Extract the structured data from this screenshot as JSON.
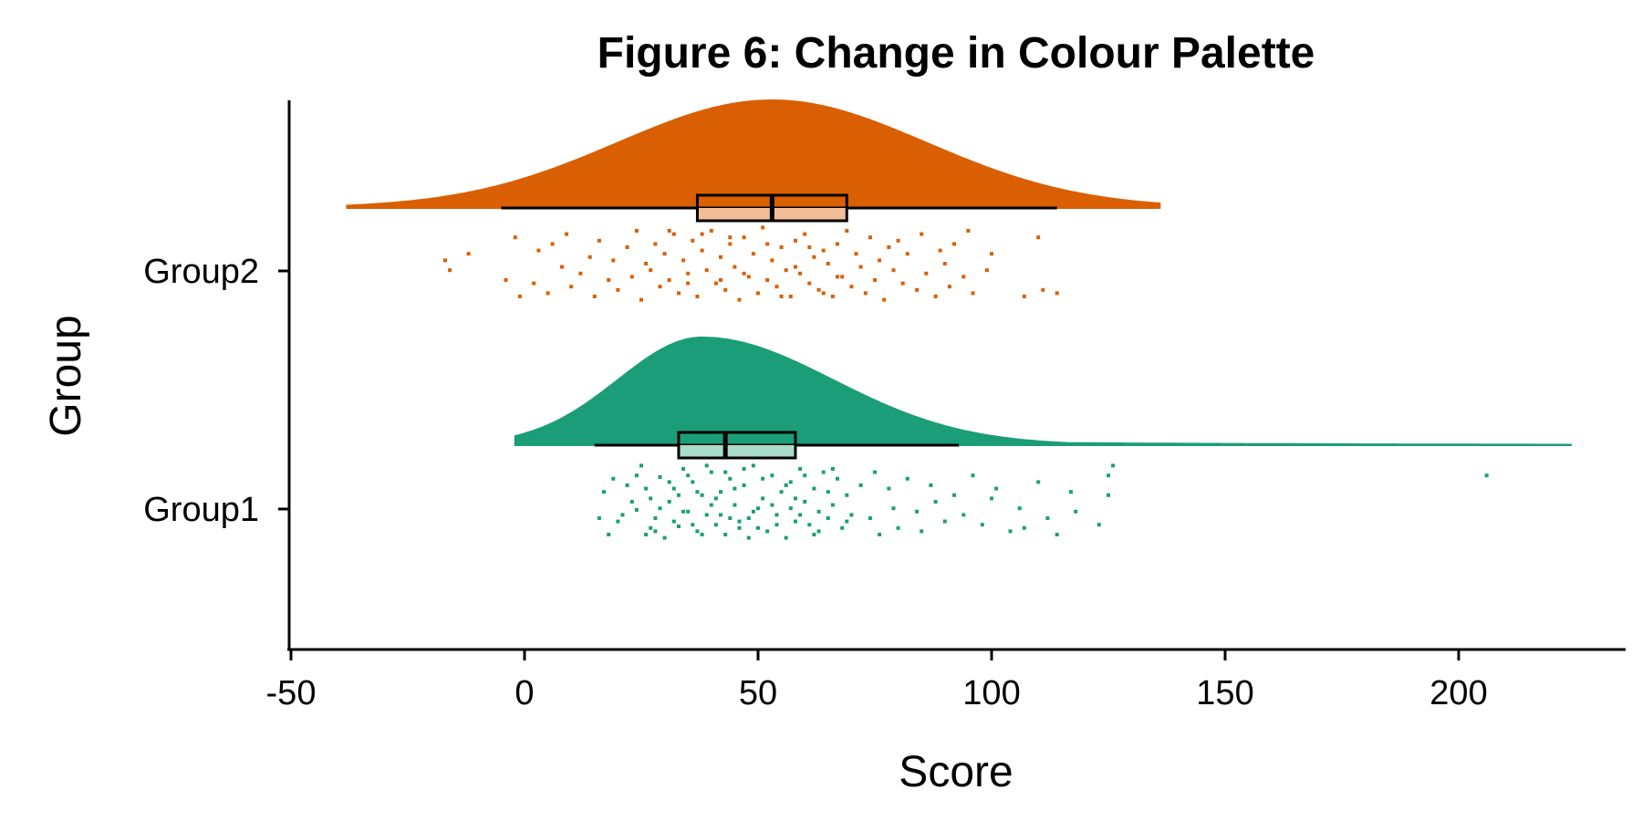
{
  "chart_data": {
    "type": "raincloud",
    "title": "Figure 6: Change in Colour Palette",
    "xlabel": "Score",
    "ylabel": "Group",
    "xlim": [
      -50,
      235
    ],
    "x_ticks": [
      -50,
      0,
      50,
      100,
      150,
      200
    ],
    "x_tick_labels": [
      "-50",
      "0",
      "50",
      "100",
      "150",
      "200"
    ],
    "categories": [
      "Group1",
      "Group2"
    ],
    "grid": false,
    "legend": "none",
    "series": [
      {
        "name": "Group1",
        "color": "#1B9E77",
        "box_fill": "#A9DCCB",
        "density_range": [
          -2,
          224
        ],
        "density_mode": 38,
        "box": {
          "whisker_low": 15,
          "q1": 33,
          "median": 43,
          "q3": 58,
          "whisker_high": 93
        },
        "points": [
          [
            20,
            0.12
          ],
          [
            22,
            -0.1
          ],
          [
            24,
            0.05
          ],
          [
            25,
            -0.22
          ],
          [
            26,
            0.2
          ],
          [
            27,
            -0.02
          ],
          [
            28,
            0.1
          ],
          [
            29,
            -0.15
          ],
          [
            30,
            0.22
          ],
          [
            31,
            0.0
          ],
          [
            32,
            -0.08
          ],
          [
            33,
            0.15
          ],
          [
            34,
            -0.2
          ],
          [
            35,
            0.06
          ],
          [
            36,
            -0.12
          ],
          [
            37,
            0.18
          ],
          [
            38,
            -0.04
          ],
          [
            39,
            0.08
          ],
          [
            40,
            -0.18
          ],
          [
            41,
            0.14
          ],
          [
            42,
            -0.06
          ],
          [
            43,
            0.2
          ],
          [
            44,
            -0.14
          ],
          [
            45,
            0.02
          ],
          [
            46,
            0.16
          ],
          [
            47,
            -0.1
          ],
          [
            48,
            0.1
          ],
          [
            49,
            -0.22
          ],
          [
            50,
            0.04
          ],
          [
            51,
            -0.02
          ],
          [
            52,
            0.18
          ],
          [
            53,
            -0.16
          ],
          [
            54,
            0.08
          ],
          [
            55,
            -0.06
          ],
          [
            56,
            0.22
          ],
          [
            57,
            -0.12
          ],
          [
            58,
            0.12
          ],
          [
            59,
            -0.2
          ],
          [
            60,
            0.0
          ],
          [
            61,
            0.14
          ],
          [
            62,
            -0.08
          ],
          [
            63,
            0.06
          ],
          [
            64,
            -0.18
          ],
          [
            65,
            0.1
          ],
          [
            66,
            0.02
          ],
          [
            67,
            -0.14
          ],
          [
            68,
            0.16
          ],
          [
            69,
            -0.04
          ],
          [
            70,
            0.08
          ],
          [
            72,
            -0.1
          ],
          [
            23,
            0.0
          ],
          [
            26,
            -0.08
          ],
          [
            29,
            0.04
          ],
          [
            32,
            0.12
          ],
          [
            35,
            -0.16
          ],
          [
            38,
            0.2
          ],
          [
            41,
            -0.02
          ],
          [
            44,
            0.1
          ],
          [
            47,
            -0.2
          ],
          [
            50,
            0.16
          ],
          [
            53,
            0.02
          ],
          [
            56,
            -0.1
          ],
          [
            59,
            0.08
          ],
          [
            62,
            0.2
          ],
          [
            65,
            -0.06
          ],
          [
            34,
            0.06
          ],
          [
            37,
            -0.06
          ],
          [
            40,
            0.02
          ],
          [
            43,
            -0.18
          ],
          [
            46,
            0.12
          ],
          [
            24,
            -0.16
          ],
          [
            28,
            0.18
          ],
          [
            31,
            -0.12
          ],
          [
            36,
            0.14
          ],
          [
            39,
            -0.22
          ],
          [
            42,
            0.08
          ],
          [
            45,
            -0.08
          ],
          [
            48,
            0.22
          ],
          [
            51,
            -0.14
          ],
          [
            54,
            0.14
          ],
          [
            57,
            0.04
          ],
          [
            60,
            -0.16
          ],
          [
            63,
            0.18
          ],
          [
            66,
            -0.2
          ],
          [
            69,
            0.12
          ],
          [
            21,
            0.08
          ],
          [
            27,
            0.16
          ],
          [
            33,
            -0.04
          ],
          [
            49,
            0.06
          ],
          [
            58,
            -0.02
          ],
          [
            74,
            0.1
          ],
          [
            75,
            -0.18
          ],
          [
            76,
            0.2
          ],
          [
            78,
            -0.08
          ],
          [
            79,
            0.04
          ],
          [
            80,
            0.16
          ],
          [
            82,
            -0.14
          ],
          [
            84,
            0.06
          ],
          [
            85,
            0.18
          ],
          [
            87,
            -0.1
          ],
          [
            88,
            0.0
          ],
          [
            90,
            0.12
          ],
          [
            92,
            -0.04
          ],
          [
            94,
            0.08
          ],
          [
            96,
            -0.16
          ],
          [
            98,
            0.14
          ],
          [
            101,
            -0.08
          ],
          [
            104,
            0.18
          ],
          [
            106,
            0.04
          ],
          [
            110,
            -0.12
          ],
          [
            112,
            0.1
          ],
          [
            114,
            0.2
          ],
          [
            117,
            -0.06
          ],
          [
            118,
            0.06
          ],
          [
            123,
            0.14
          ],
          [
            125,
            -0.04
          ],
          [
            125,
            -0.16
          ],
          [
            126,
            -0.22
          ],
          [
            107,
            0.16
          ],
          [
            100,
            -0.02
          ],
          [
            206,
            -0.16
          ],
          [
            16,
            0.1
          ],
          [
            17,
            -0.06
          ],
          [
            18,
            0.2
          ],
          [
            19,
            -0.14
          ]
        ]
      },
      {
        "name": "Group2",
        "color": "#D95F02",
        "box_fill": "#F3BE99",
        "density_range": [
          -38,
          136
        ],
        "density_mode": 53,
        "box": {
          "whisker_low": -5,
          "q1": 37,
          "median": 53,
          "q3": 69,
          "whisker_high": 114
        },
        "points": [
          [
            -16,
            0.04
          ],
          [
            -17,
            -0.02
          ],
          [
            -12,
            -0.06
          ],
          [
            -4,
            0.1
          ],
          [
            -2,
            -0.16
          ],
          [
            -1,
            0.2
          ],
          [
            2,
            0.12
          ],
          [
            3,
            -0.08
          ],
          [
            5,
            0.18
          ],
          [
            6,
            -0.12
          ],
          [
            8,
            0.02
          ],
          [
            9,
            -0.18
          ],
          [
            10,
            0.14
          ],
          [
            12,
            0.06
          ],
          [
            14,
            -0.04
          ],
          [
            15,
            0.2
          ],
          [
            16,
            -0.14
          ],
          [
            18,
            0.1
          ],
          [
            19,
            -0.02
          ],
          [
            20,
            0.16
          ],
          [
            22,
            -0.1
          ],
          [
            23,
            0.08
          ],
          [
            24,
            -0.2
          ],
          [
            25,
            0.22
          ],
          [
            26,
            0.0
          ],
          [
            28,
            -0.12
          ],
          [
            29,
            0.14
          ],
          [
            30,
            -0.06
          ],
          [
            31,
            0.1
          ],
          [
            32,
            -0.18
          ],
          [
            33,
            0.18
          ],
          [
            34,
            -0.02
          ],
          [
            35,
            0.06
          ],
          [
            36,
            -0.14
          ],
          [
            37,
            0.2
          ],
          [
            38,
            -0.08
          ],
          [
            39,
            0.04
          ],
          [
            40,
            -0.2
          ],
          [
            41,
            0.12
          ],
          [
            42,
            -0.04
          ],
          [
            43,
            0.16
          ],
          [
            44,
            -0.12
          ],
          [
            45,
            0.02
          ],
          [
            46,
            0.22
          ],
          [
            47,
            -0.16
          ],
          [
            48,
            0.08
          ],
          [
            49,
            -0.06
          ],
          [
            50,
            0.18
          ],
          [
            51,
            -0.22
          ],
          [
            52,
            0.1
          ],
          [
            53,
            -0.02
          ],
          [
            54,
            0.14
          ],
          [
            55,
            -0.1
          ],
          [
            56,
            0.04
          ],
          [
            57,
            0.2
          ],
          [
            58,
            -0.14
          ],
          [
            59,
            0.06
          ],
          [
            60,
            -0.18
          ],
          [
            61,
            0.12
          ],
          [
            62,
            -0.04
          ],
          [
            63,
            0.16
          ],
          [
            64,
            -0.08
          ],
          [
            65,
            0.0
          ],
          [
            66,
            0.2
          ],
          [
            67,
            -0.12
          ],
          [
            68,
            0.08
          ],
          [
            69,
            -0.2
          ],
          [
            70,
            0.14
          ],
          [
            71,
            -0.06
          ],
          [
            72,
            0.02
          ],
          [
            73,
            0.18
          ],
          [
            74,
            -0.16
          ],
          [
            75,
            0.1
          ],
          [
            76,
            -0.02
          ],
          [
            77,
            0.22
          ],
          [
            78,
            -0.1
          ],
          [
            79,
            0.04
          ],
          [
            80,
            -0.14
          ],
          [
            81,
            0.12
          ],
          [
            82,
            -0.06
          ],
          [
            84,
            0.16
          ],
          [
            85,
            -0.18
          ],
          [
            86,
            0.06
          ],
          [
            88,
            0.2
          ],
          [
            89,
            -0.08
          ],
          [
            90,
            0.0
          ],
          [
            91,
            0.14
          ],
          [
            92,
            -0.12
          ],
          [
            94,
            0.08
          ],
          [
            95,
            -0.2
          ],
          [
            96,
            0.18
          ],
          [
            99,
            0.04
          ],
          [
            100,
            -0.06
          ],
          [
            107,
            0.2
          ],
          [
            110,
            -0.16
          ],
          [
            111,
            0.16
          ],
          [
            114,
            0.18
          ],
          [
            27,
            0.04
          ],
          [
            35,
            0.12
          ],
          [
            44,
            -0.16
          ],
          [
            47,
            0.06
          ],
          [
            52,
            -0.12
          ],
          [
            55,
            0.2
          ],
          [
            58,
            0.02
          ],
          [
            61,
            -0.1
          ],
          [
            64,
            0.18
          ],
          [
            67,
            0.08
          ],
          [
            42,
            0.1
          ],
          [
            38,
            -0.18
          ],
          [
            31,
            -0.2
          ]
        ]
      }
    ]
  }
}
